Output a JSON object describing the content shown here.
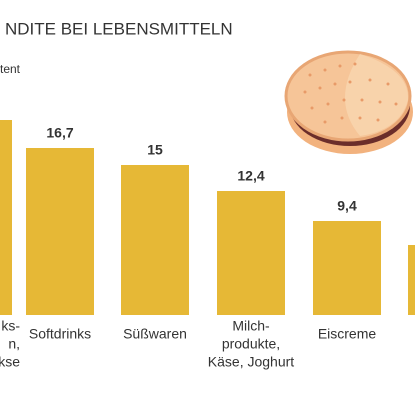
{
  "chart_data": {
    "type": "bar",
    "title": "NDITE BEI LEBENSMITTELN",
    "subtitle": "tent",
    "categories": [
      [
        "ks-",
        "n,",
        "ekse"
      ],
      [
        "Softdrinks"
      ],
      [
        "Süßwaren"
      ],
      [
        "Milch-",
        "produkte,",
        "Käse, Joghurt"
      ],
      [
        "Eiscreme"
      ],
      null
    ],
    "values": [
      19.5,
      16.7,
      15,
      12.4,
      9.4,
      7
    ],
    "value_labels": [
      null,
      "16,7",
      "15",
      "12,4",
      "9,4",
      null
    ],
    "color": "#e6b836"
  }
}
